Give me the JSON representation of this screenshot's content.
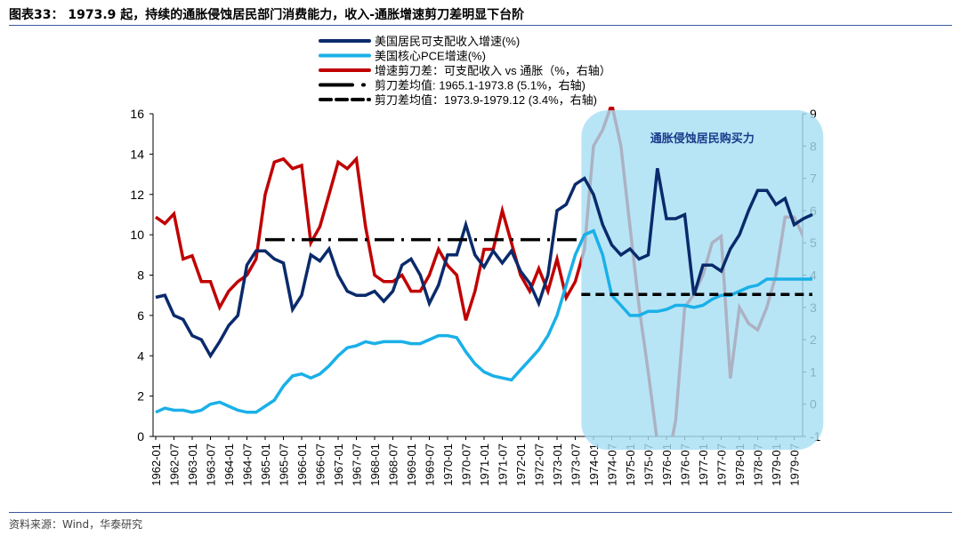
{
  "title": "图表33： 1973.9 起，持续的通胀侵蚀居民部门消费能力，收入-通胀增速剪刀差明显下台阶",
  "source": "资料来源：Wind，华泰研究",
  "chart_data": {
    "type": "line",
    "annotation": "通胀侵蚀居民购买力",
    "shaded_range": [
      "1973-09",
      "1979-12"
    ],
    "yleft": {
      "min": 0,
      "max": 16,
      "ticks": [
        0,
        2,
        4,
        6,
        8,
        10,
        12,
        14,
        16
      ]
    },
    "yright": {
      "min": -1,
      "max": 9,
      "ticks": [
        -1,
        0,
        1,
        2,
        3,
        4,
        5,
        6,
        7,
        8,
        9
      ]
    },
    "xticks": [
      "1962-01",
      "1962-07",
      "1963-01",
      "1963-07",
      "1964-01",
      "1964-07",
      "1965-01",
      "1965-07",
      "1966-01",
      "1966-07",
      "1967-01",
      "1967-07",
      "1968-01",
      "1968-07",
      "1969-01",
      "1969-07",
      "1970-01",
      "1970-07",
      "1971-01",
      "1971-07",
      "1972-01",
      "1972-07",
      "1973-01",
      "1973-07",
      "1974-01",
      "1974-07",
      "1975-01",
      "1975-07",
      "1976-01",
      "1976-07",
      "1977-01",
      "1977-07",
      "1978-01",
      "1978-07",
      "1979-01",
      "1979-07"
    ],
    "x_start": "1962-01",
    "x_step": "quarter",
    "series": [
      {
        "name": "美国居民可支配收入增速(%)",
        "axis": "left",
        "color": "#0a2a6b",
        "values": [
          6.9,
          7.0,
          6.0,
          5.8,
          5.0,
          4.8,
          4.0,
          4.7,
          5.5,
          6.0,
          8.5,
          9.2,
          9.2,
          8.8,
          8.6,
          6.3,
          7.0,
          9.0,
          8.7,
          9.3,
          8.0,
          7.2,
          7.0,
          7.0,
          7.2,
          6.7,
          7.2,
          8.5,
          8.8,
          8.0,
          6.6,
          7.5,
          9.0,
          9.0,
          10.5,
          9.0,
          8.4,
          9.2,
          8.6,
          9.2,
          8.2,
          7.6,
          6.6,
          8.0,
          11.2,
          11.5,
          12.5,
          12.8,
          12.0,
          10.5,
          9.5,
          9.0,
          9.3,
          8.8,
          9.0,
          13.3,
          10.8,
          10.8,
          11.0,
          7.0,
          8.5,
          8.5,
          8.2,
          9.3,
          10.0,
          11.2,
          12.2,
          12.2,
          11.5,
          11.8,
          10.5,
          10.8,
          11.0
        ]
      },
      {
        "name": "美国核心PCE增速(%)",
        "axis": "left",
        "color": "#1ab0e8",
        "values": [
          1.2,
          1.4,
          1.3,
          1.3,
          1.2,
          1.3,
          1.6,
          1.7,
          1.5,
          1.3,
          1.2,
          1.2,
          1.5,
          1.8,
          2.5,
          3.0,
          3.1,
          2.9,
          3.1,
          3.5,
          4.0,
          4.4,
          4.5,
          4.7,
          4.6,
          4.7,
          4.7,
          4.7,
          4.6,
          4.6,
          4.8,
          5.0,
          5.0,
          4.9,
          4.2,
          3.6,
          3.2,
          3.0,
          2.9,
          2.8,
          3.3,
          3.8,
          4.3,
          5.0,
          6.0,
          7.5,
          9.0,
          10.0,
          10.2,
          9.0,
          7.0,
          6.5,
          6.0,
          6.0,
          6.2,
          6.2,
          6.3,
          6.5,
          6.5,
          6.4,
          6.5,
          6.8,
          7.0,
          7.0,
          7.2,
          7.4,
          7.5,
          7.8,
          7.8,
          7.8,
          7.8,
          7.8,
          7.8
        ]
      },
      {
        "name": "增速剪刀差：可支配收入 vs 通胀（%，右轴）",
        "axis": "right",
        "color": "#c00000",
        "values": [
          5.8,
          5.6,
          5.9,
          4.5,
          4.6,
          3.8,
          3.8,
          3.0,
          3.5,
          3.8,
          4.0,
          4.5,
          6.5,
          7.5,
          7.6,
          7.3,
          7.4,
          5.0,
          5.5,
          6.5,
          7.5,
          7.3,
          7.6,
          5.5,
          4.0,
          3.8,
          3.8,
          4.0,
          3.5,
          3.5,
          4.0,
          4.8,
          4.3,
          4.0,
          2.6,
          3.5,
          4.8,
          4.8,
          6.0,
          5.0,
          4.0,
          3.5,
          4.2,
          3.5,
          4.5,
          3.3,
          3.8,
          4.8,
          8.0,
          8.5,
          9.3,
          8.0,
          5.5,
          3.0,
          1.0,
          -1.2,
          -2.0,
          -0.5,
          3.0,
          3.4,
          4.0,
          5.0,
          5.2,
          0.8,
          3.0,
          2.5,
          2.3,
          3.0,
          4.0,
          5.8,
          5.8,
          5.2,
          4.0
        ]
      },
      {
        "name": "剪刀差均值: 1965.1-1973.8 (5.1%，右轴)",
        "axis": "right",
        "color": "#000000",
        "style": "dash-dot",
        "range": [
          "1965-01",
          "1973-08"
        ],
        "value": 5.1
      },
      {
        "name": "剪刀差均值：1973.9-1979.12 (3.4%，右轴)",
        "axis": "right",
        "color": "#000000",
        "style": "dashed",
        "range": [
          "1973-09",
          "1979-12"
        ],
        "value": 3.4
      }
    ]
  }
}
